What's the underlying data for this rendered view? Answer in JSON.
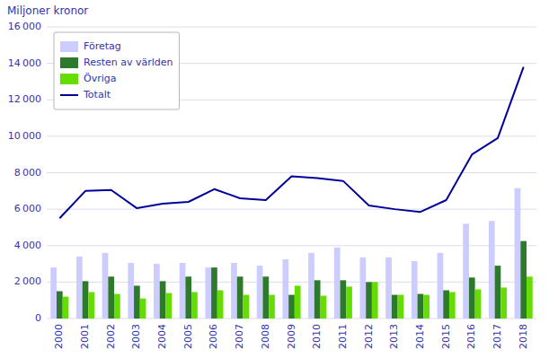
{
  "chart_data": {
    "type": "bar",
    "ylabel": "Miljoner kronor",
    "categories": [
      "2000",
      "2001",
      "2002",
      "2003",
      "2004",
      "2005",
      "2006",
      "2007",
      "2008",
      "2009",
      "2010",
      "2011",
      "2012",
      "2013",
      "2014",
      "2015",
      "2016",
      "2017",
      "2018"
    ],
    "series": [
      {
        "name": "Företag",
        "color": "#ccccff",
        "type": "bar",
        "values": [
          2800,
          3400,
          3600,
          3050,
          3000,
          3050,
          2800,
          3050,
          2900,
          3250,
          3600,
          3900,
          3350,
          3350,
          3150,
          3600,
          5200,
          5350,
          7150
        ]
      },
      {
        "name": "Resten av världen",
        "color": "#2d7a2d",
        "type": "bar",
        "values": [
          1500,
          2050,
          2300,
          1800,
          2050,
          2300,
          2800,
          2300,
          2300,
          1300,
          2100,
          2100,
          2000,
          1300,
          1350,
          1550,
          2250,
          2900,
          4250
        ]
      },
      {
        "name": "Övriga",
        "color": "#66dd00",
        "type": "bar",
        "values": [
          1200,
          1450,
          1350,
          1100,
          1400,
          1450,
          1550,
          1300,
          1300,
          1800,
          1250,
          1750,
          2000,
          1300,
          1300,
          1450,
          1600,
          1700,
          2300
        ]
      },
      {
        "name": "Totalt",
        "color": "#000099",
        "type": "line",
        "values": [
          5500,
          7000,
          7050,
          6050,
          6300,
          6400,
          7100,
          6600,
          6500,
          7800,
          7700,
          7550,
          6200,
          6000,
          5850,
          6500,
          9000,
          9900,
          13800
        ]
      }
    ],
    "ylim": [
      0,
      16000
    ],
    "yticks": [
      0,
      {
        "value": 2000,
        "label": "2 000"
      },
      {
        "value": 4000,
        "label": "4 000"
      },
      {
        "value": 6000,
        "label": "6 000"
      },
      {
        "value": 8000,
        "label": "8 000"
      },
      {
        "value": 10000,
        "label": "10 000"
      },
      {
        "value": 12000,
        "label": "12 000"
      },
      {
        "value": 14000,
        "label": "14 000"
      },
      {
        "value": 16000,
        "label": "16 000"
      }
    ],
    "grid": true,
    "legend": "upper left"
  }
}
